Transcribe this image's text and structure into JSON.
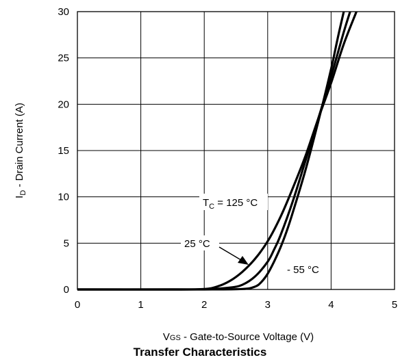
{
  "chart_data": {
    "type": "line",
    "caption": "Transfer Characteristics",
    "xlabel": {
      "main": "V",
      "sub": "GS",
      "rest": " - Gate-to-Source Voltage (V)"
    },
    "ylabel": {
      "main": "I",
      "sub": "D",
      "rest": " - Drain Current (A)"
    },
    "xlim": [
      0,
      5
    ],
    "ylim": [
      0,
      30
    ],
    "xticks": [
      "0",
      "1",
      "2",
      "3",
      "4",
      "5"
    ],
    "yticks": [
      "0",
      "5",
      "10",
      "15",
      "20",
      "25",
      "30"
    ],
    "grid": true,
    "series": [
      {
        "name": "T_C = 125 °C",
        "x": [
          0,
          1.5,
          2.0,
          2.2,
          2.4,
          2.6,
          2.8,
          3.0,
          3.2,
          3.4,
          3.6,
          3.8,
          4.0,
          4.2,
          4.4
        ],
        "y": [
          0,
          0,
          0.05,
          0.3,
          0.9,
          1.9,
          3.3,
          5.2,
          7.8,
          11.0,
          14.5,
          18.5,
          22.3,
          26.5,
          30
        ]
      },
      {
        "name": "25 °C",
        "x": [
          0,
          1.5,
          2.0,
          2.4,
          2.6,
          2.8,
          3.0,
          3.1,
          3.2,
          3.4,
          3.6,
          3.8,
          4.0,
          4.2,
          4.3
        ],
        "y": [
          0,
          0,
          0.02,
          0.2,
          0.5,
          1.4,
          3.0,
          4.3,
          5.8,
          9.6,
          14.0,
          18.5,
          23.0,
          27.8,
          30
        ]
      },
      {
        "name": "- 55 °C",
        "x": [
          0,
          1.5,
          2.0,
          2.6,
          2.8,
          2.9,
          3.0,
          3.1,
          3.2,
          3.3,
          3.4,
          3.6,
          3.8,
          4.0,
          4.1,
          4.2
        ],
        "y": [
          0,
          0,
          0,
          0.05,
          0.3,
          0.8,
          1.7,
          3.0,
          4.5,
          6.3,
          8.4,
          13.0,
          18.2,
          23.8,
          27.0,
          30
        ]
      }
    ],
    "annotations": {
      "t125": {
        "main": "T",
        "sub": "C",
        "rest": " = 125 °C"
      },
      "t25": "25 °C",
      "tm55": "- 55 °C"
    }
  }
}
